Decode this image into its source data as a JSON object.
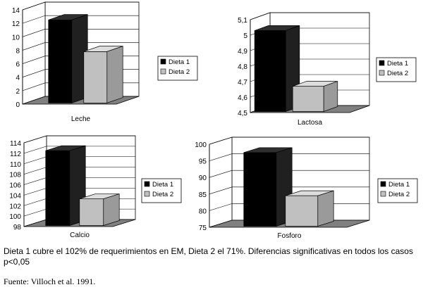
{
  "chart_data": [
    {
      "type": "bar",
      "categories": [
        "Leche"
      ],
      "series": [
        {
          "name": "Dieta 1",
          "values": [
            12.5
          ]
        },
        {
          "name": "Dieta 2",
          "values": [
            7.8
          ]
        }
      ],
      "yticks": [
        "0",
        "2",
        "4",
        "6",
        "8",
        "10",
        "12",
        "14"
      ],
      "ylim": [
        0,
        14
      ],
      "grid": true,
      "legend": "right",
      "colors": {
        "Dieta 1": "#000000",
        "Dieta 2": "#c0c0c0"
      }
    },
    {
      "type": "bar",
      "categories": [
        "Lactosa"
      ],
      "series": [
        {
          "name": "Dieta 1",
          "values": [
            5.03
          ]
        },
        {
          "name": "Dieta 2",
          "values": [
            4.67
          ]
        }
      ],
      "yticks": [
        "4,5",
        "4,6",
        "4,7",
        "4,8",
        "4,9",
        "5",
        "5,1"
      ],
      "ylim": [
        4.5,
        5.1
      ],
      "grid": true,
      "legend": "right",
      "colors": {
        "Dieta 1": "#000000",
        "Dieta 2": "#c0c0c0"
      }
    },
    {
      "type": "bar",
      "categories": [
        "Calcio"
      ],
      "series": [
        {
          "name": "Dieta 1",
          "values": [
            112.5
          ]
        },
        {
          "name": "Dieta 2",
          "values": [
            103.3
          ]
        }
      ],
      "yticks": [
        "98",
        "100",
        "102",
        "104",
        "106",
        "108",
        "110",
        "112",
        "114"
      ],
      "ylim": [
        98,
        114
      ],
      "grid": true,
      "legend": "right",
      "colors": {
        "Dieta 1": "#000000",
        "Dieta 2": "#c0c0c0"
      }
    },
    {
      "type": "bar",
      "categories": [
        "Fosforo"
      ],
      "series": [
        {
          "name": "Dieta 1",
          "values": [
            97.5
          ]
        },
        {
          "name": "Dieta 2",
          "values": [
            84.5
          ]
        }
      ],
      "yticks": [
        "75",
        "80",
        "85",
        "90",
        "95",
        "100"
      ],
      "ylim": [
        75,
        100
      ],
      "grid": true,
      "legend": "right",
      "colors": {
        "Dieta 1": "#000000",
        "Dieta 2": "#c0c0c0"
      }
    }
  ],
  "caption": "Dieta 1 cubre el 102% de requerimientos en EM, Dieta 2 el 71%. Diferencias significativas en todos los casos p<0,05",
  "source": "Fuente: Villoch et al. 1991."
}
